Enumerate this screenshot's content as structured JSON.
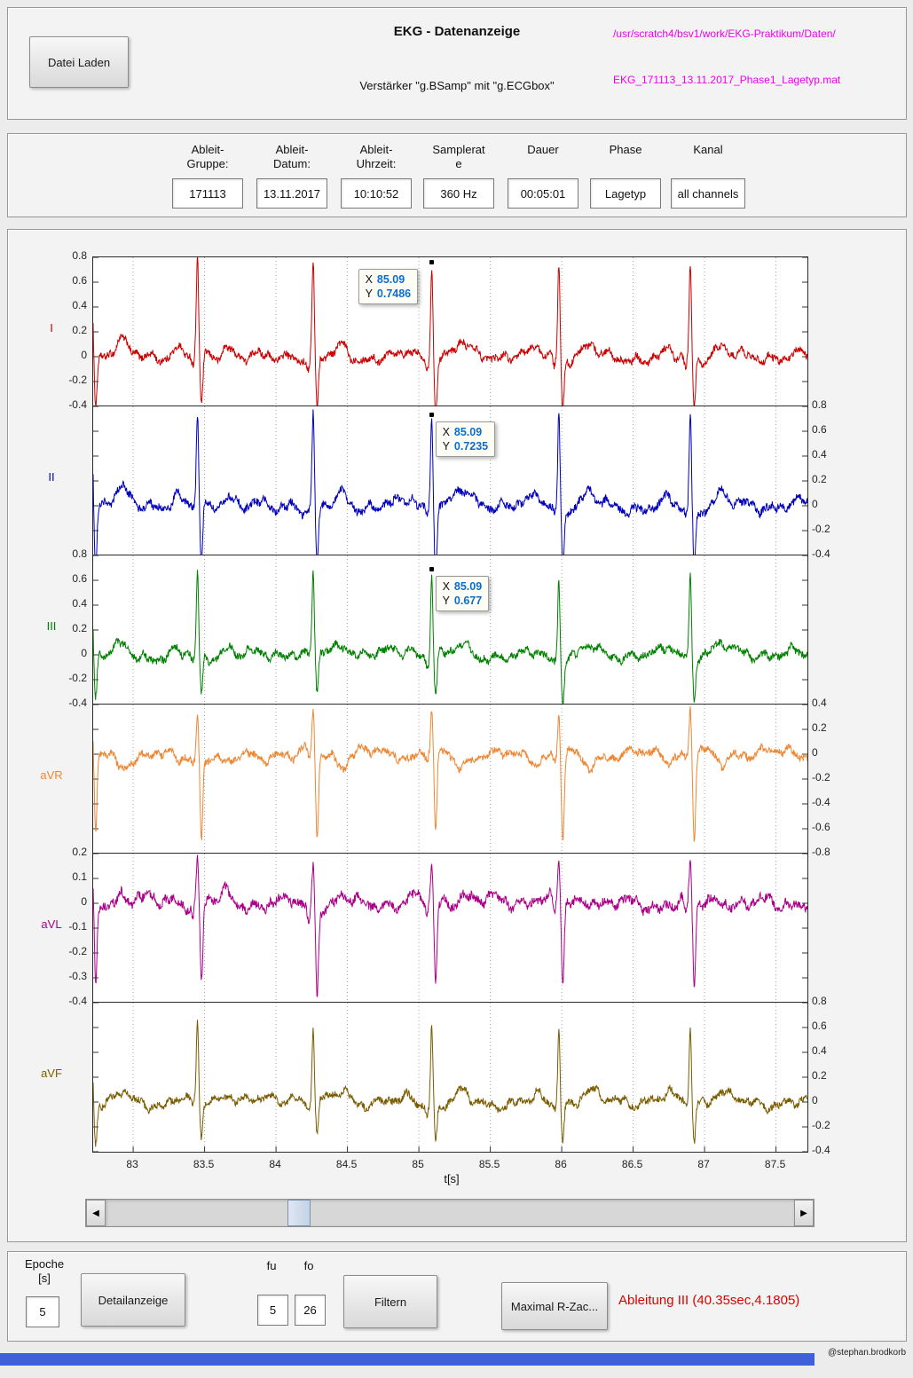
{
  "header": {
    "title": "EKG - Datenanzeige",
    "subtitle": "Verstärker \"g.BSamp\" mit \"g.ECGbox\"",
    "load_button": "Datei Laden",
    "path_line1": "/usr/scratch4/bsv1/work/EKG-Praktikum/Daten/",
    "path_line2": "EKG_171113_13.11.2017_Phase1_Lagetyp.mat",
    "path_color": "#ee00ee"
  },
  "info": {
    "fields": [
      {
        "label": "Ableit-Gruppe:",
        "value": "171113"
      },
      {
        "label": "Ableit-Datum:",
        "value": "13.11.2017"
      },
      {
        "label": "Ableit-Uhrzeit:",
        "value": "10:10:52"
      },
      {
        "label": "Samplerate",
        "value": "360 Hz"
      },
      {
        "label": "Dauer",
        "value": "00:05:01"
      },
      {
        "label": "Phase",
        "value": "Lagetyp"
      },
      {
        "label": "Kanal",
        "value": "all channels"
      }
    ]
  },
  "chart_data": {
    "type": "line",
    "xlabel": "t[s]",
    "xlim": [
      82.72,
      87.72
    ],
    "x_ticks": [
      83,
      83.5,
      84,
      84.5,
      85,
      85.5,
      86,
      86.5,
      87,
      87.5
    ],
    "grid": "vertical-dotted",
    "beat_times": [
      82.71,
      83.45,
      84.26,
      85.09,
      85.98,
      86.9
    ],
    "series": [
      {
        "name": "I",
        "color": "#cc0000",
        "axis": "left",
        "ylim": [
          -0.4,
          0.8
        ],
        "yticks": [
          0.8,
          0.6,
          0.4,
          0.2,
          0,
          -0.2,
          -0.4
        ],
        "r": 0.75,
        "q": -0.08,
        "s": -0.4,
        "p": 0.05,
        "tw": 0.09,
        "noise": 0.05
      },
      {
        "name": "II",
        "color": "#0000bb",
        "axis": "right",
        "ylim": [
          -0.4,
          0.8
        ],
        "yticks": [
          0.8,
          0.6,
          0.4,
          0.2,
          0,
          -0.2,
          -0.4
        ],
        "r": 0.74,
        "q": -0.06,
        "s": -0.48,
        "p": 0.06,
        "tw": 0.1,
        "noise": 0.055
      },
      {
        "name": "III",
        "color": "#008000",
        "axis": "left",
        "ylim": [
          -0.4,
          0.8
        ],
        "yticks": [
          0.8,
          0.6,
          0.4,
          0.2,
          0,
          -0.2,
          -0.4
        ],
        "r": 0.66,
        "q": -0.05,
        "s": -0.33,
        "p": 0.04,
        "tw": 0.07,
        "noise": 0.05
      },
      {
        "name": "aVR",
        "color": "#ed8733",
        "axis": "right",
        "ylim": [
          -0.8,
          0.4
        ],
        "yticks": [
          0.4,
          0.2,
          0,
          -0.2,
          -0.4,
          -0.6,
          -0.8
        ],
        "r": 0.36,
        "q": -0.05,
        "s": -0.68,
        "p": -0.04,
        "tw": -0.09,
        "noise": 0.05
      },
      {
        "name": "aVL",
        "color": "#aa0088",
        "axis": "left",
        "ylim": [
          -0.4,
          0.2
        ],
        "yticks": [
          0.2,
          0.1,
          0,
          -0.1,
          -0.2,
          -0.3,
          -0.4
        ],
        "r": 0.16,
        "q": -0.05,
        "s": -0.33,
        "p": 0.02,
        "tw": 0.03,
        "noise": 0.032
      },
      {
        "name": "aVF",
        "color": "#7a5c00",
        "axis": "right",
        "ylim": [
          -0.4,
          0.8
        ],
        "yticks": [
          0.8,
          0.6,
          0.4,
          0.2,
          0,
          -0.2,
          -0.4
        ],
        "r": 0.62,
        "q": -0.05,
        "s": -0.3,
        "p": 0.05,
        "tw": 0.08,
        "noise": 0.05
      }
    ],
    "tooltips": [
      {
        "series": 0,
        "x": 85.09,
        "y": 0.7486,
        "x_label": "85.09",
        "y_label": "0.7486",
        "side": "left"
      },
      {
        "series": 1,
        "x": 85.09,
        "y": 0.7235,
        "x_label": "85.09",
        "y_label": "0.7235",
        "side": "right"
      },
      {
        "series": 2,
        "x": 85.09,
        "y": 0.677,
        "x_label": "85.09",
        "y_label": "0.677",
        "side": "right"
      }
    ]
  },
  "controls": {
    "epoche_label": "Epoche [s]",
    "epoche_value": "5",
    "detail_button": "Detailanzeige",
    "fu_label": "fu",
    "fu_value": "5",
    "fo_label": "fo",
    "fo_value": "26",
    "filter_button": "Filtern",
    "rzack_button": "Maximal R-Zac...",
    "status_text": "Ableitung III (40.35sec,4.1805)",
    "status_color": "#dd0000"
  },
  "footer": {
    "credit": "@stephan.brodkorb"
  }
}
